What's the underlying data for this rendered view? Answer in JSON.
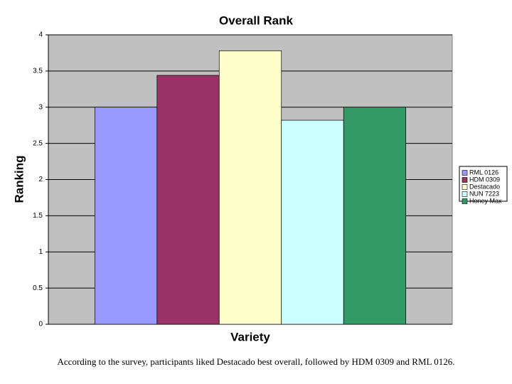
{
  "chart_data": {
    "type": "bar",
    "title": "Overall Rank",
    "x_label": "Variety",
    "y_label": "Ranking",
    "categories": [
      null
    ],
    "series": [
      {
        "name": "RML 0126",
        "color": "#9999ff",
        "values": [
          3
        ]
      },
      {
        "name": "HDM 0309",
        "color": "#993366",
        "values": [
          3.44
        ]
      },
      {
        "name": "Destacado",
        "color": "#ffffcc",
        "values": [
          3.78
        ]
      },
      {
        "name": "NUN 7223",
        "color": "#ccffff",
        "values": [
          2.82
        ]
      },
      {
        "name": "Honey Max",
        "color": "#339966",
        "values": [
          3
        ]
      }
    ],
    "ylim": [
      0,
      4
    ],
    "yticks": [
      0,
      0.5,
      1,
      1.5,
      2,
      2.5,
      3,
      3.5,
      4
    ],
    "grid": true,
    "legend": "right",
    "caption": "According to the survey, participants liked Destacado best overall, followed by HDM 0309 and RML 0126."
  }
}
